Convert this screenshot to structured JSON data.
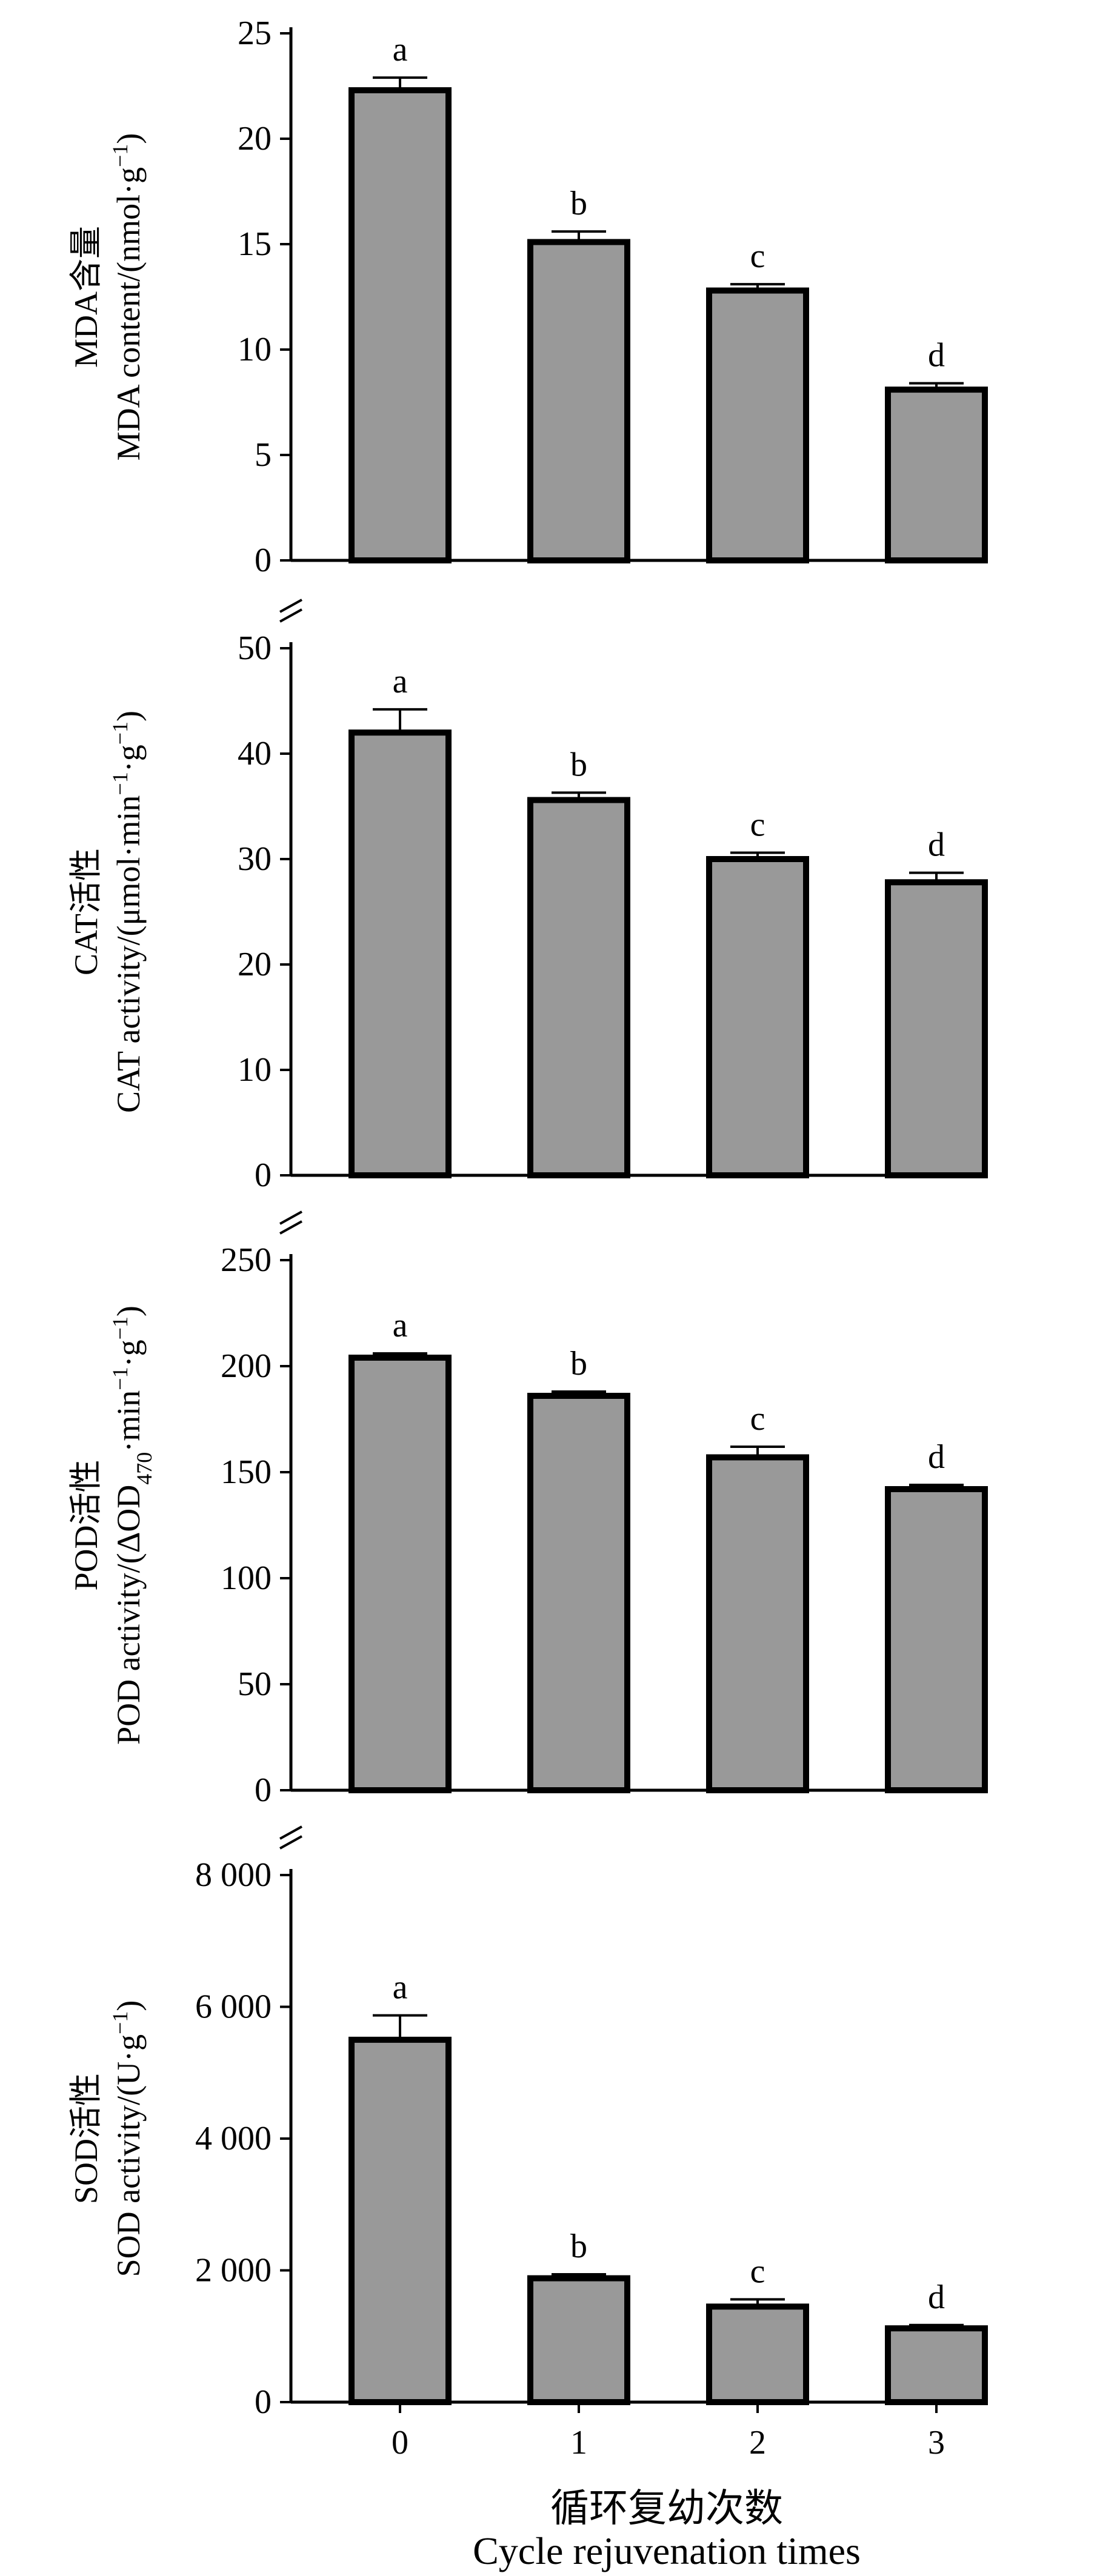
{
  "colors": {
    "bar_fill": "#999999",
    "bar_edge": "#000000",
    "axis": "#000000"
  },
  "x_axis": {
    "title_cn": "循环复幼次数",
    "title_en": "Cycle rejuvenation times"
  },
  "chart_data": [
    {
      "type": "bar",
      "categories": [
        "0",
        "1",
        "2",
        "3"
      ],
      "values": [
        22.3,
        15.1,
        12.8,
        8.1
      ],
      "errors": [
        0.6,
        0.5,
        0.3,
        0.3
      ],
      "significance": [
        "a",
        "b",
        "c",
        "d"
      ],
      "ylim": [
        0,
        25
      ],
      "yticks": [
        0,
        5,
        10,
        15,
        20,
        25
      ],
      "ytick_labels": [
        "0",
        "5",
        "10",
        "15",
        "20",
        "25"
      ],
      "ylabel_cn": "MDA含量",
      "ylabel_en": "MDA content/(nmol·g",
      "ylabel_sup": "−1",
      "ylabel_tail": ")"
    },
    {
      "type": "bar",
      "categories": [
        "0",
        "1",
        "2",
        "3"
      ],
      "values": [
        42.0,
        35.6,
        30.0,
        27.8
      ],
      "errors": [
        2.2,
        0.7,
        0.6,
        0.9
      ],
      "significance": [
        "a",
        "b",
        "c",
        "d"
      ],
      "ylim": [
        0,
        50
      ],
      "yticks": [
        0,
        10,
        20,
        30,
        40,
        50
      ],
      "ytick_labels": [
        "0",
        "10",
        "20",
        "30",
        "40",
        "50"
      ],
      "ylabel_cn": "CAT活性",
      "ylabel_en": "CAT activity/(μmol·min",
      "ylabel_sup": "−1",
      "ylabel_tail": "·g",
      "ylabel_sup2": "−1",
      "ylabel_tail2": ")"
    },
    {
      "type": "bar",
      "categories": [
        "0",
        "1",
        "2",
        "3"
      ],
      "values": [
        204,
        186,
        157,
        142
      ],
      "errors": [
        2,
        2,
        5,
        2
      ],
      "significance": [
        "a",
        "b",
        "c",
        "d"
      ],
      "ylim": [
        0,
        250
      ],
      "yticks": [
        0,
        50,
        100,
        150,
        200,
        250
      ],
      "ytick_labels": [
        "0",
        "50",
        "100",
        "150",
        "200",
        "250"
      ],
      "ylabel_cn": "POD活性",
      "ylabel_en": "POD activity/(ΔOD",
      "ylabel_sub": "470",
      "ylabel_tail": "·min",
      "ylabel_sup": "−1",
      "ylabel_tail2": "·g",
      "ylabel_sup2": "−1",
      "ylabel_tail3": ")"
    },
    {
      "type": "bar",
      "categories": [
        "0",
        "1",
        "2",
        "3"
      ],
      "values": [
        5500,
        1880,
        1450,
        1120
      ],
      "errors": [
        370,
        60,
        110,
        50
      ],
      "significance": [
        "a",
        "b",
        "c",
        "d"
      ],
      "ylim": [
        0,
        8000
      ],
      "yticks": [
        0,
        2000,
        4000,
        6000,
        8000
      ],
      "ytick_labels": [
        "0",
        "2 000",
        "4 000",
        "6 000",
        "8 000"
      ],
      "ylabel_cn": "SOD活性",
      "ylabel_en": "SOD activity/(U·g",
      "ylabel_sup": "−1",
      "ylabel_tail": ")"
    }
  ]
}
